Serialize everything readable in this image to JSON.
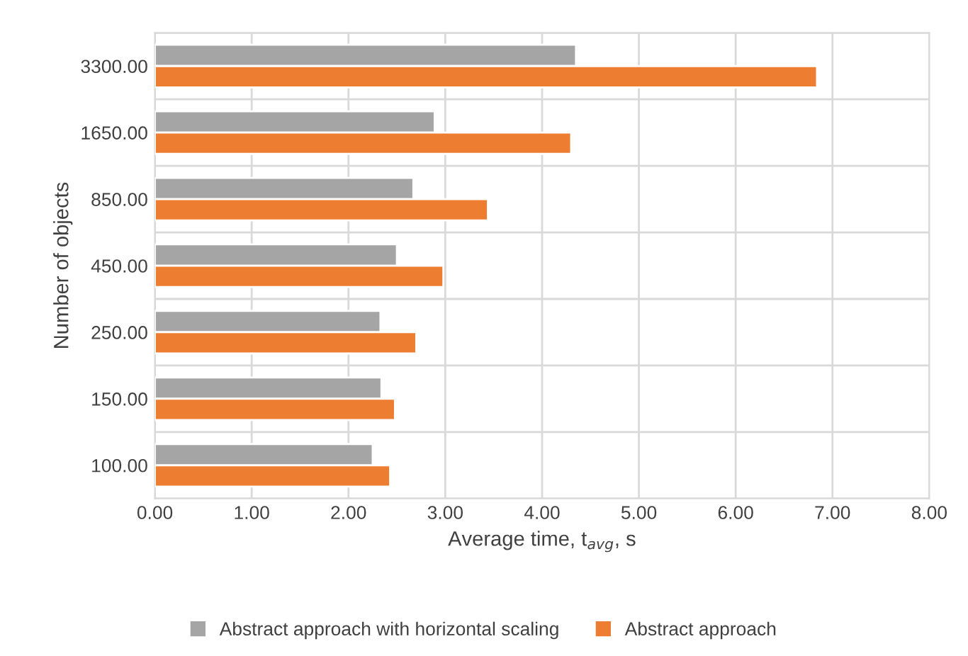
{
  "chart_data": {
    "type": "bar",
    "orientation": "horizontal",
    "xlabel": "Average time, t$_{avg}$, s",
    "ylabel": "Number of objects",
    "categories": [
      "3300.00",
      "1650.00",
      "850.00",
      "450.00",
      "250.00",
      "150.00",
      "100.00"
    ],
    "series": [
      {
        "name": "Abstract approach with horizontal scaling",
        "color": "#a5a5a5",
        "values": [
          4.35,
          2.89,
          2.67,
          2.5,
          2.33,
          2.34,
          2.25
        ]
      },
      {
        "name": "Abstract approach",
        "color": "#ed7d31",
        "values": [
          6.84,
          4.3,
          3.44,
          2.98,
          2.7,
          2.48,
          2.43
        ]
      }
    ],
    "xlim": [
      0,
      8
    ],
    "xticks": [
      {
        "value": 0,
        "label": "0.00"
      },
      {
        "value": 1,
        "label": "1.00"
      },
      {
        "value": 2,
        "label": "2.00"
      },
      {
        "value": 3,
        "label": "3.00"
      },
      {
        "value": 4,
        "label": "4.00"
      },
      {
        "value": 5,
        "label": "5.00"
      },
      {
        "value": 6,
        "label": "6.00"
      },
      {
        "value": 7,
        "label": "7.00"
      },
      {
        "value": 8,
        "label": "8.00"
      }
    ],
    "grid": true,
    "legend": "bottom"
  }
}
